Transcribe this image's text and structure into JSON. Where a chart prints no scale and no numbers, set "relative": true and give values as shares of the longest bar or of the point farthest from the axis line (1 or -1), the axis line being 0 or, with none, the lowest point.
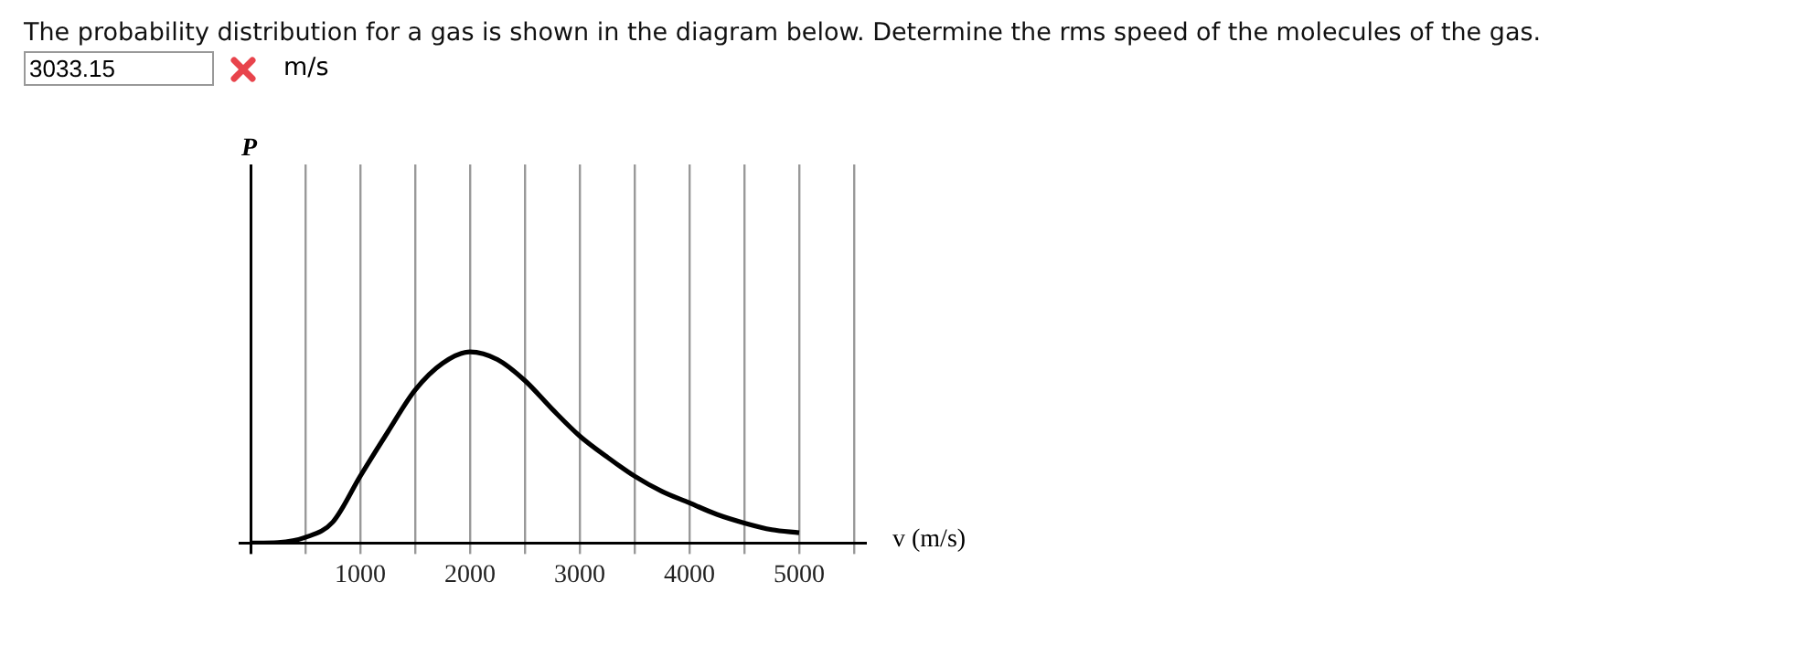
{
  "chart_data": {
    "type": "line",
    "title": "The probability distribution for a gas is shown in the diagram below. Determine the rms speed of the molecules of the gas.",
    "xlabel": "v (m/s)",
    "annotations": [
      "3033.15",
      "m/s",
      "P"
    ],
    "x": [
      0,
      250,
      500,
      750,
      1000,
      1250,
      1500,
      1750,
      2000,
      2250,
      2500,
      2750,
      3000,
      3250,
      3500,
      3750,
      4000,
      4250,
      4500,
      4750,
      5000
    ],
    "series": [
      {
        "color": "#000000",
        "values": [
          0,
          0.003,
          0.03,
          0.11,
          0.35,
          0.58,
          0.8,
          0.94,
          1,
          0.96,
          0.85,
          0.7,
          0.56,
          0.45,
          0.35,
          0.27,
          0.21,
          0.15,
          0.105,
          0.07,
          0.054
        ]
      }
    ],
    "relative": true,
    "xlim": [
      -100,
      5600
    ],
    "xticks": [
      {
        "value": 0,
        "label": null
      },
      {
        "value": 500,
        "label": null
      },
      1000,
      {
        "value": 1500,
        "label": null
      },
      2000,
      {
        "value": 2500,
        "label": null
      },
      3000,
      {
        "value": 3500,
        "label": null
      },
      4000,
      {
        "value": 4500,
        "label": null
      },
      5000,
      {
        "value": 5500,
        "label": null
      }
    ],
    "grid": "x",
    "marker": "none",
    "line_style": "solid",
    "legend": false,
    "tick_labels": "x"
  }
}
